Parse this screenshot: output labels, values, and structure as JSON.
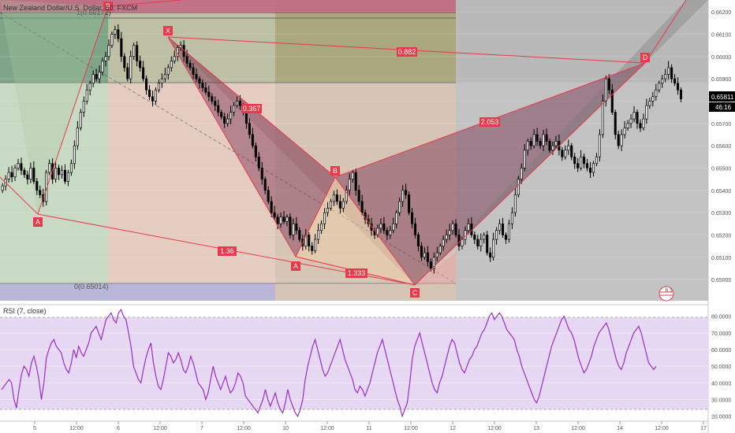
{
  "header": {
    "symbol_title": "New Zealand Dollar/U.S. Dollar, 60, FXCM"
  },
  "price_pane": {
    "last_price": "0.65811",
    "countdown": "46:16",
    "fib_labels": [
      "1(0.66172)",
      "0(0.65014)"
    ],
    "pattern_points": [
      {
        "label": "X",
        "price": 0.6607,
        "time_idx": 57
      },
      {
        "label": "A",
        "price": 0.65128,
        "time_idx": 100
      },
      {
        "label": "B",
        "price": 0.6548,
        "time_idx": 114
      },
      {
        "label": "C",
        "price": 0.6501,
        "time_idx": 140
      },
      {
        "label": "D",
        "price": 0.6596,
        "time_idx": 216
      },
      {
        "label": "A",
        "price": 0.6532,
        "time_idx": 13
      },
      {
        "label": "B",
        "price": 0.662,
        "time_idx": 36
      }
    ],
    "ratio_labels": [
      "0.882",
      "2.053",
      "0.367",
      "1.36",
      "1.333"
    ],
    "badge_text": "B 3"
  },
  "rsi_pane": {
    "title": "RSI (7, close)",
    "levels": [
      "80.0000",
      "70.0000",
      "60.0000",
      "50.0000",
      "40.0000",
      "30.0000",
      "20.0000"
    ]
  },
  "axis": {
    "price_ticks": [
      "0.66200",
      "0.66100",
      "0.66000",
      "0.65900",
      "0.65800",
      "0.65700",
      "0.65600",
      "0.65500",
      "0.65400",
      "0.65300",
      "0.65200",
      "0.65100",
      "0.65000"
    ],
    "time_ticks": [
      "5",
      "12:00",
      "6",
      "12:00",
      "7",
      "12:00",
      "10",
      "12:00",
      "11",
      "12:00",
      "12",
      "12:00",
      "13",
      "12:00",
      "14",
      "12:00",
      "17"
    ]
  },
  "colors": {
    "bull": "#ffffff",
    "bear": "#000000",
    "pattern_line": "#e8394a",
    "pattern_fill_dark": "#7b3a55",
    "pattern_fill_light": "#f0cfa8",
    "rsi_line": "#9b2ec4",
    "rsi_band": "#e6d8f2",
    "label_bg": "#e8394a"
  },
  "chart_data": [
    {
      "type": "candlestick",
      "title": "New Zealand Dollar/U.S. Dollar, 60, FXCM",
      "ylim": [
        0.64965,
        0.66225
      ],
      "y_unit": "price",
      "x_ticks": [
        "5",
        "12:00",
        "6",
        "12:00",
        "7",
        "12:00",
        "10",
        "12:00",
        "11",
        "12:00",
        "12",
        "12:00",
        "13",
        "12:00",
        "14",
        "12:00",
        "17"
      ],
      "close_series": [
        0.6542,
        0.6545,
        0.6548,
        0.6546,
        0.655,
        0.6552,
        0.6549,
        0.6547,
        0.6545,
        0.655,
        0.6544,
        0.654,
        0.6538,
        0.6535,
        0.6548,
        0.6552,
        0.6545,
        0.655,
        0.6547,
        0.6549,
        0.6544,
        0.6548,
        0.6552,
        0.656,
        0.6568,
        0.6575,
        0.658,
        0.6585,
        0.6588,
        0.6592,
        0.659,
        0.6593,
        0.6598,
        0.66,
        0.6605,
        0.661,
        0.6612,
        0.6608,
        0.66,
        0.6595,
        0.659,
        0.66,
        0.6605,
        0.6598,
        0.6595,
        0.659,
        0.6585,
        0.6582,
        0.658,
        0.6585,
        0.6588,
        0.659,
        0.6592,
        0.6595,
        0.6598,
        0.66,
        0.6604,
        0.6605,
        0.66,
        0.6597,
        0.6595,
        0.6592,
        0.659,
        0.6588,
        0.6586,
        0.6584,
        0.6582,
        0.658,
        0.6578,
        0.6575,
        0.6573,
        0.657,
        0.6572,
        0.6575,
        0.6578,
        0.658,
        0.6578,
        0.6575,
        0.657,
        0.6565,
        0.656,
        0.6555,
        0.655,
        0.6545,
        0.654,
        0.6535,
        0.653,
        0.6528,
        0.6525,
        0.6528,
        0.6526,
        0.6528,
        0.652,
        0.6525,
        0.6522,
        0.6518,
        0.6515,
        0.652,
        0.6515,
        0.6513,
        0.6518,
        0.6522,
        0.6525,
        0.653,
        0.6532,
        0.6535,
        0.6538,
        0.6535,
        0.6532,
        0.6535,
        0.654,
        0.6545,
        0.6548,
        0.654,
        0.6535,
        0.653,
        0.6527,
        0.6525,
        0.6522,
        0.652,
        0.6523,
        0.6525,
        0.6522,
        0.652,
        0.6522,
        0.6525,
        0.653,
        0.6535,
        0.654,
        0.6538,
        0.653,
        0.6525,
        0.652,
        0.6515,
        0.651,
        0.6512,
        0.6508,
        0.6505,
        0.651,
        0.6512,
        0.6515,
        0.6518,
        0.652,
        0.6522,
        0.6525,
        0.652,
        0.6515,
        0.6518,
        0.6522,
        0.6525,
        0.652,
        0.6518,
        0.6515,
        0.6518,
        0.652,
        0.6512,
        0.651,
        0.6518,
        0.6522,
        0.6525,
        0.652,
        0.6518,
        0.6525,
        0.653,
        0.6538,
        0.6545,
        0.655,
        0.6558,
        0.6562,
        0.656,
        0.6565,
        0.6562,
        0.656,
        0.6565,
        0.6562,
        0.6558,
        0.656,
        0.6562,
        0.6558,
        0.6555,
        0.6558,
        0.656,
        0.6555,
        0.6552,
        0.655,
        0.6555,
        0.6552,
        0.655,
        0.6548,
        0.6552,
        0.6555,
        0.6565,
        0.658,
        0.659,
        0.6585,
        0.6575,
        0.6565,
        0.656,
        0.6565,
        0.6568,
        0.657,
        0.6572,
        0.6575,
        0.657,
        0.6568,
        0.6572,
        0.6578,
        0.658,
        0.6582,
        0.6585,
        0.6588,
        0.659,
        0.6592,
        0.6595,
        0.659,
        0.6588,
        0.6585,
        0.6581
      ],
      "last": 0.65811
    },
    {
      "type": "line",
      "title": "RSI (7, close)",
      "ylim": [
        17,
        86
      ],
      "levels": [
        80,
        20
      ],
      "series": [
        {
          "values": [
            36,
            38,
            40,
            42,
            40,
            30,
            25,
            36,
            45,
            50,
            48,
            44,
            52,
            56,
            50,
            42,
            30,
            40,
            55,
            60,
            64,
            66,
            62,
            60,
            58,
            52,
            48,
            46,
            52,
            60,
            55,
            62,
            58,
            56,
            60,
            64,
            70,
            72,
            74,
            70,
            66,
            72,
            78,
            80,
            82,
            78,
            76,
            82,
            84,
            80,
            78,
            70,
            62,
            50,
            46,
            42,
            40,
            48,
            55,
            60,
            64,
            52,
            44,
            38,
            36,
            42,
            50,
            58,
            56,
            52,
            54,
            58,
            54,
            48,
            46,
            50,
            56,
            52,
            46,
            40,
            38,
            36,
            30,
            34,
            42,
            50,
            44,
            40,
            36,
            40,
            44,
            38,
            34,
            36,
            40,
            46,
            44,
            40,
            32,
            30,
            28,
            26,
            24,
            22,
            26,
            30,
            36,
            30,
            26,
            30,
            34,
            28,
            24,
            22,
            28,
            36,
            30,
            26,
            22,
            20,
            24,
            30,
            42,
            50,
            56,
            62,
            66,
            60,
            54,
            48,
            44,
            46,
            50,
            54,
            58,
            62,
            66,
            60,
            54,
            50,
            46,
            42,
            36,
            34,
            38,
            36,
            32,
            36,
            40,
            46,
            52,
            58,
            62,
            66,
            60,
            54,
            48,
            42,
            36,
            30,
            26,
            20,
            24,
            28,
            40,
            54,
            62,
            66,
            70,
            64,
            58,
            52,
            46,
            40,
            36,
            34,
            40,
            44,
            50,
            56,
            62,
            66,
            64,
            58,
            52,
            48,
            46,
            50,
            54,
            56,
            60,
            62,
            66,
            70,
            72,
            76,
            80,
            82,
            78,
            80,
            82,
            80,
            76,
            72,
            70,
            68,
            66,
            60,
            56,
            50,
            46,
            42,
            38,
            34,
            30,
            28,
            32,
            38,
            44,
            50,
            56,
            62,
            66,
            70,
            74,
            78,
            80,
            76,
            72,
            70,
            66,
            60,
            54,
            50,
            46,
            48,
            52,
            56,
            62,
            66,
            70,
            72,
            74,
            76,
            72,
            66,
            60,
            54,
            50,
            48,
            52,
            58,
            62,
            66,
            70,
            72,
            74,
            70,
            64,
            58,
            52,
            50,
            48,
            50
          ]
        }
      ]
    }
  ]
}
